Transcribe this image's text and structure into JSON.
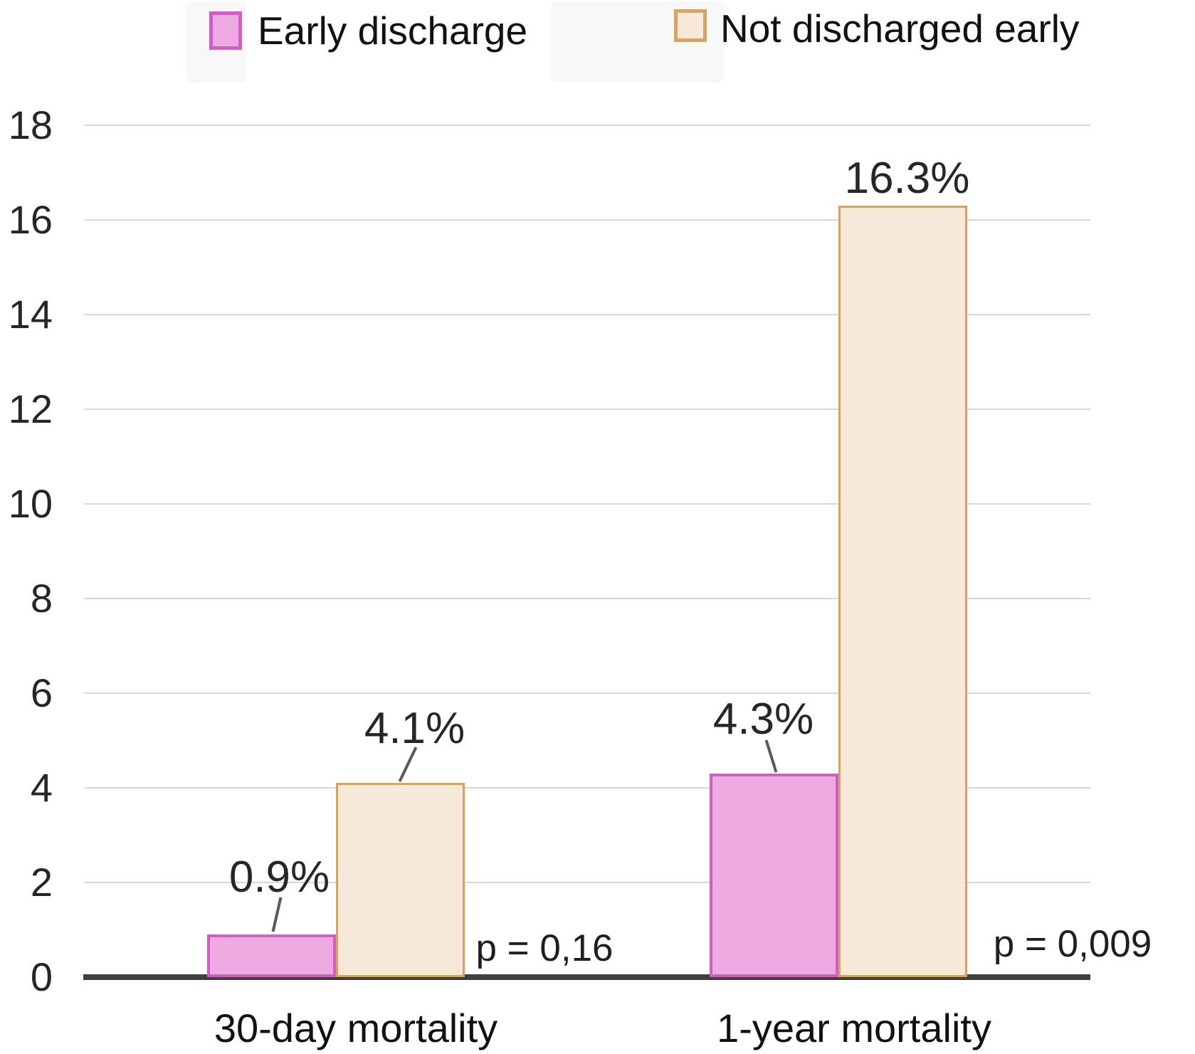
{
  "chart_data": {
    "type": "bar",
    "title": "",
    "categories": [
      "30-day mortality",
      "1-year mortality"
    ],
    "series": [
      {
        "name": "Early discharge",
        "values": [
          0.9,
          4.3
        ],
        "fill_color": "#edaae3",
        "border_color": "#d45cc6"
      },
      {
        "name": "Not discharged early",
        "values": [
          4.1,
          16.3
        ],
        "fill_color": "#f6e9da",
        "border_color": "#d9a260"
      }
    ],
    "data_labels": [
      {
        "text": "0.9%",
        "series": 0,
        "category": 0,
        "leader_line": true
      },
      {
        "text": "4.1%",
        "series": 1,
        "category": 0,
        "leader_line": true
      },
      {
        "text": "4.3%",
        "series": 0,
        "category": 1,
        "leader_line": true
      },
      {
        "text": "16.3%",
        "series": 1,
        "category": 1,
        "leader_line": false
      }
    ],
    "annotations": [
      {
        "text": "p = 0,16",
        "category": 0
      },
      {
        "text": "p = 0,009",
        "category": 1
      }
    ],
    "y_axis": {
      "min": 0,
      "max": 18,
      "tick_step": 2,
      "ticks": [
        0,
        2,
        4,
        6,
        8,
        10,
        12,
        14,
        16,
        18
      ]
    },
    "grid": true,
    "legend_position": "top",
    "colors": {
      "gridline": "#d9d9d9",
      "axis_line": "#3f3f3f",
      "text": "#1a1a1a",
      "leader_line": "#595959",
      "legend_item_bg": "#f8f8f8",
      "background": "#ffffff"
    }
  }
}
